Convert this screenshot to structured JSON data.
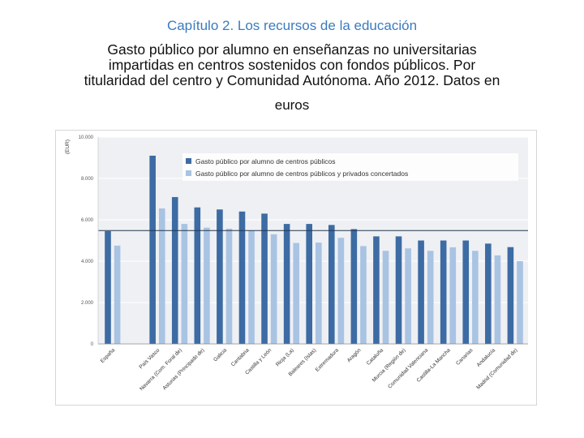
{
  "header": "Capítulo 2. Los recursos de la educación",
  "title_lines": [
    "Gasto público por alumno en enseñanzas no universitarias",
    "impartidas en centros sostenidos con fondos públicos. Por",
    "titularidad del centro y Comunidad Autónoma. Año 2012. Datos en"
  ],
  "title_tail": "euros",
  "chart_data": {
    "type": "bar",
    "title": "",
    "ylabel": "(EUR)",
    "xlabel": "",
    "ylim": [
      0,
      10000
    ],
    "yticks": [
      0,
      2000,
      4000,
      6000,
      8000,
      10000
    ],
    "ytick_labels": [
      "0",
      "2.000",
      "4.000",
      "6.000",
      "8.000",
      "10.000"
    ],
    "grid": true,
    "legend_position": "top-right",
    "reference_line": 5480,
    "categories": [
      "España",
      "",
      "País Vasco",
      "Navarra (Com. Foral de)",
      "Asturias (Principado de)",
      "Galicia",
      "Cantabria",
      "Castilla y León",
      "Rioja (La)",
      "Baleares (Islas)",
      "Extremadura",
      "Aragón",
      "Cataluña",
      "Murcia (Región de)",
      "Comunidad Valenciana",
      "Castilla-La Mancha",
      "Canarias",
      "Andalucía",
      "Madrid (Comunidad de)"
    ],
    "series": [
      {
        "name": "Gasto público por alumno de centros públicos",
        "color": "#3d6ba3",
        "values": [
          5450,
          null,
          9100,
          7100,
          6600,
          6500,
          6400,
          6300,
          5800,
          5800,
          5750,
          5550,
          5200,
          5200,
          5000,
          5000,
          5000,
          4850,
          4680
        ]
      },
      {
        "name": "Gasto público por alumno de centros públicos y privados concertados",
        "color": "#a9c3e3",
        "values": [
          4750,
          null,
          6550,
          5800,
          5620,
          5570,
          5480,
          5300,
          4880,
          4900,
          5130,
          4730,
          4500,
          4620,
          4500,
          4670,
          4500,
          4280,
          4000
        ]
      }
    ]
  }
}
